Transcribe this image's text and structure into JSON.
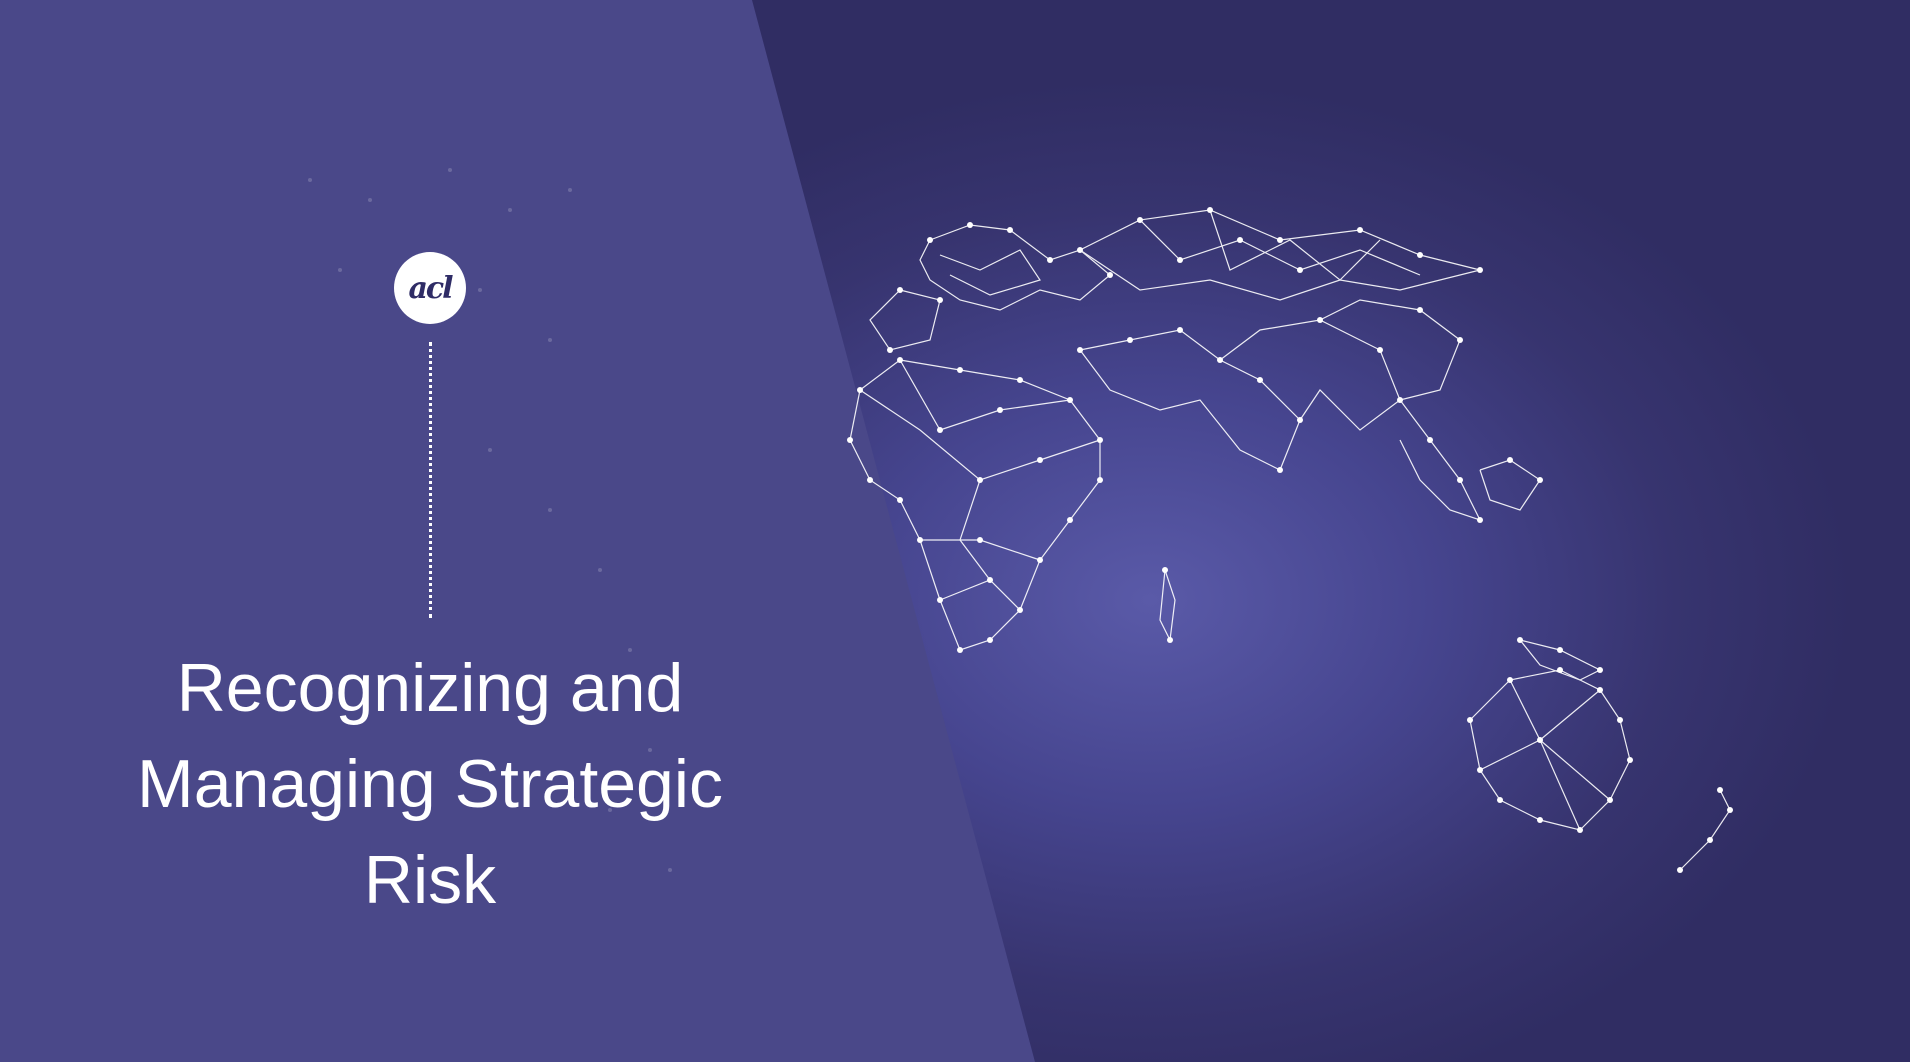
{
  "logo": {
    "text": "acl"
  },
  "title": {
    "line1": "Recognizing and",
    "line2": "Managing Strategic",
    "line3": "Risk"
  },
  "colors": {
    "background": "#3f3c7e",
    "left_panel": "#4a4889",
    "text": "#ffffff",
    "map_lines": "#ffffff"
  },
  "icons": [
    "acl-logo",
    "world-network-map"
  ]
}
